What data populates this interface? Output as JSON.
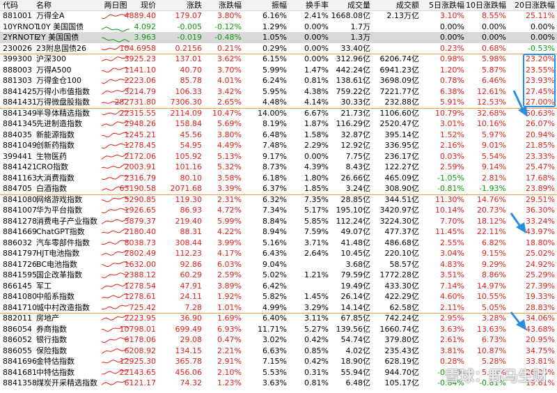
{
  "table": {
    "headers": [
      "代码",
      "名称",
      "两日图",
      "现价",
      "涨跌",
      "涨跌幅",
      "振幅",
      "换手率",
      "成交量",
      "成交额",
      "5日涨跌幅",
      "10日涨跌幅",
      "20日涨跌幅"
    ],
    "selected_code": "2YRNOTE",
    "groups": [
      {
        "rows": [
          [
            "881001",
            "万得全A",
            "4889.40",
            "179.07",
            "3.80%",
            "6.16%",
            "2.41%",
            "1668.08亿",
            "2.13万亿",
            "3.10%",
            "8.55%",
            "25.11%"
          ],
          [
            "10YRNOT",
            "10Y 美国国债",
            "4.092",
            "-0.005",
            "-0.12%",
            "1.29%",
            "0.00%",
            "1.7万",
            null,
            "0.00%",
            "0.00%",
            "0.00%"
          ],
          [
            "2YRNOTE",
            "2Y 美国国债",
            "3.963",
            "-0.019",
            "-0.48%",
            "1.05%",
            "0.00%",
            "1.3万",
            null,
            "0.00%",
            "0.00%",
            "0.00%"
          ],
          [
            "230026",
            "23附息国债26",
            "104.6958",
            "0.2156",
            "0.21%",
            "0.29%",
            "0.00%",
            "33.40亿",
            null,
            "0.23%",
            "0.68%",
            "-0.53%"
          ]
        ]
      },
      {
        "rows": [
          [
            "399300",
            "沪深300",
            "3925.23",
            "137.01",
            "3.62%",
            "6.15%",
            "0.00%",
            "312.96亿",
            "6206.74亿",
            "0.98%",
            "5.98%",
            "23.20%"
          ],
          [
            "888003",
            "万得A500",
            "1141.10",
            "40.70",
            "3.70%",
            "5.99%",
            "1.47%",
            "442.24亿",
            "6941.23亿",
            "1.20%",
            "5.87%",
            "23.55%"
          ],
          [
            "881303",
            "万得金仓100",
            "2223.06",
            "85.78",
            "4.01%",
            "6.24%",
            "0.81%",
            "138.61亿",
            "3698.09亿",
            "0.78%",
            "6.46%",
            "23.93%"
          ],
          [
            "8841425",
            "万得小市值指数",
            "3214.79",
            "106.33",
            "3.42%",
            "5.95%",
            "4.38%",
            "759.22亿",
            "7221.77亿",
            "6.38%",
            "12.61%",
            "27.45%"
          ],
          [
            "8841431",
            "万得微盘股指数",
            "282731.80",
            "7306.30",
            "2.65%",
            "4.48%",
            "4.14%",
            "30.33亿",
            "232.88亿",
            "5.91%",
            "12.53%",
            "27.00%"
          ]
        ]
      },
      {
        "rows": [
          [
            "8841349",
            "半导体精选指数",
            "22315.55",
            "2114.09",
            "10.47%",
            "14.00%",
            "6.67%",
            "21.73亿",
            "1106.60亿",
            "10.79%",
            "32.68%",
            "50.63%"
          ],
          [
            "8841345",
            "先进制造指数",
            "2948.26",
            "158.84",
            "5.69%",
            "8.19%",
            "1.87%",
            "116.29亿",
            "2520.47亿",
            "3.01%",
            "10.16%",
            "26.07%"
          ],
          [
            "884035",
            "新能源指数",
            "1245.21",
            "45.56",
            "3.80%",
            "6.48%",
            "1.58%",
            "32.87亿",
            "395.14亿",
            "1.52%",
            "5.97%",
            "20.94%"
          ],
          [
            "8841049",
            "创新药指数",
            "1278.45",
            "54.95",
            "4.49%",
            "7.48%",
            "2.29%",
            "12.92亿",
            "336.95亿",
            "2.16%",
            "9.01%",
            "21.85%"
          ],
          [
            "399441",
            "生物医药",
            "2172.06",
            "105.92",
            "5.13%",
            "9.17%",
            "0.00%",
            "7.75亿",
            "236.17亿",
            "0.03%",
            "5.54%",
            "23.33%"
          ],
          [
            "8841421",
            "CRO指数",
            "2003.91",
            "101.16",
            "5.32%",
            "8.73%",
            "4.39%",
            "8.43亿",
            "122.27亿",
            "2.59%",
            "9.14%",
            "25.47%"
          ],
          [
            "8841163",
            "大消费指数",
            "2316.79",
            "80.10",
            "3.58%",
            "6.18%",
            "1.80%",
            "26.66亿",
            "465.09亿",
            "-1.05%",
            "2.81%",
            "17.68%"
          ],
          [
            "884705",
            "白酒指数",
            "63190.58",
            "2071.68",
            "3.39%",
            "6.37%",
            "1.85%",
            "3.24亿",
            "308.90亿",
            "-0.81%",
            "-1.93%",
            "23.89%"
          ]
        ]
      },
      {
        "rows": [
          [
            "8841080",
            "网络游戏指数",
            "5290.85",
            "119.30",
            "2.31%",
            "6.32%",
            "7.35%",
            "28.85亿",
            "344.51亿",
            "11.30%",
            "14.76%",
            "29.51%"
          ],
          [
            "8841007",
            "华为平台指数",
            "1926.65",
            "86.93",
            "4.72%",
            "7.34%",
            "5.17%",
            "195.10亿",
            "3420.97亿",
            "10.14%",
            "20.73%",
            "36.30%"
          ],
          [
            "8841278",
            "消费电子产业指数",
            "3879.37",
            "219.40",
            "5.99%",
            "8.84%",
            "5.85%",
            "112.24亿",
            "3224.30亿",
            "7.70%",
            "18.12%",
            "33.24%"
          ],
          [
            "8841669",
            "ChatGPT指数",
            "2180.40",
            "88.31",
            "4.22%",
            "8.94%",
            "7.59%",
            "49.07亿",
            "477.37亿",
            "11.45%",
            "22.11%",
            "43.97%"
          ],
          [
            "886032",
            "汽车零部件指数",
            "8038.73",
            "308.44",
            "3.99%",
            "5.16%",
            "3.71%",
            "41.48亿",
            "486.68亿",
            "2.55%",
            "6.82%",
            "18.80%"
          ],
          [
            "8841797",
            "HJT电池指数",
            "2802.49",
            "112.23",
            "4.17%",
            "6.43%",
            "2.64%",
            "10.45亿",
            "220.10亿",
            "3.04%",
            "9.15%",
            "25.02%"
          ],
          [
            "8841726",
            "BC电池指数",
            "1632.00",
            "92.86",
            "6.03%",
            "9.04%",
            null,
            "3.68亿",
            "58.57亿",
            "4.83%",
            "9.29%",
            "24.92%"
          ],
          [
            "8841595",
            "国企改革指数",
            "2388.12",
            "60.29",
            "2.59%",
            "5.02%",
            "1.21%",
            "79.59亿",
            "1772.28亿",
            "3.51%",
            "8.86%",
            "25.29%"
          ],
          [
            "866145",
            "军工",
            "1278.54",
            "47.91",
            "3.89%",
            "6.42%",
            null,
            "19.49亿",
            "433.30亿",
            "7.14%",
            "14.97%",
            "27.39%"
          ],
          [
            "8841080",
            "中船系指数",
            "1278.61",
            "24.11",
            "1.92%",
            "5.82%",
            "1.45%",
            "26.14亿",
            "422.29亿",
            "4.60%",
            "10.55%",
            "19.33%"
          ],
          [
            "8841710",
            "城中村改造指数",
            "725.42",
            "7.28",
            "1.01%",
            "4.99%",
            "3.29%",
            "14.14亿",
            "62.58亿",
            "2.11%",
            "5.05%",
            "28.83%"
          ]
        ]
      },
      {
        "rows": [
          [
            "882011",
            "房地产",
            "2223.95",
            "36.90",
            "1.69%",
            "6.40%",
            "3.11%",
            "67.85亿",
            "742.24亿",
            "2.95%",
            "3.28%",
            "34.06%"
          ],
          [
            "886054",
            "券商指数",
            "10798.01",
            "699.49",
            "6.93%",
            "11.71%",
            "5.27%",
            "139.56亿",
            "1660.74亿",
            "3.63%",
            "13.63%",
            "43.68%"
          ],
          [
            "886052",
            "银行指数",
            "6178.06",
            "29.08",
            "0.47%",
            "3.02%",
            "0.42%",
            "54.74亿",
            "379.80亿",
            "2.61%",
            "6.73%",
            "20.95%"
          ],
          [
            "886055",
            "保险指数",
            "6208.92",
            "134.15",
            "2.21%",
            "6.63%",
            "0.85%",
            "4.02亿",
            "235.43亿",
            "3.81%",
            "10.87%",
            "34.75%"
          ],
          [
            "8841696",
            "金特估指数",
            "12925.30",
            "365.78",
            "2.91%",
            "7.15%",
            "0.42%",
            "18.90亿",
            "628.19亿",
            "0.28%",
            "5.28%",
            "33.81%"
          ],
          [
            "8841681",
            "中特估指数",
            "22143.65",
            "456.06",
            "2.10%",
            "5.53%",
            "0.31%",
            "55.94亿",
            "944.70亿",
            "-0.15%",
            "5.09%",
            "26.26%"
          ],
          [
            "8841358",
            "煤炭开采精选指数",
            "6121.17",
            "74.32",
            "1.23%",
            "3.63%",
            "0.81%",
            "6.48亿",
            "105.17亿",
            "-0.84%",
            "-0.81%",
            "19.61%"
          ]
        ]
      }
    ]
  },
  "watermark": "雪球：野马生财"
}
